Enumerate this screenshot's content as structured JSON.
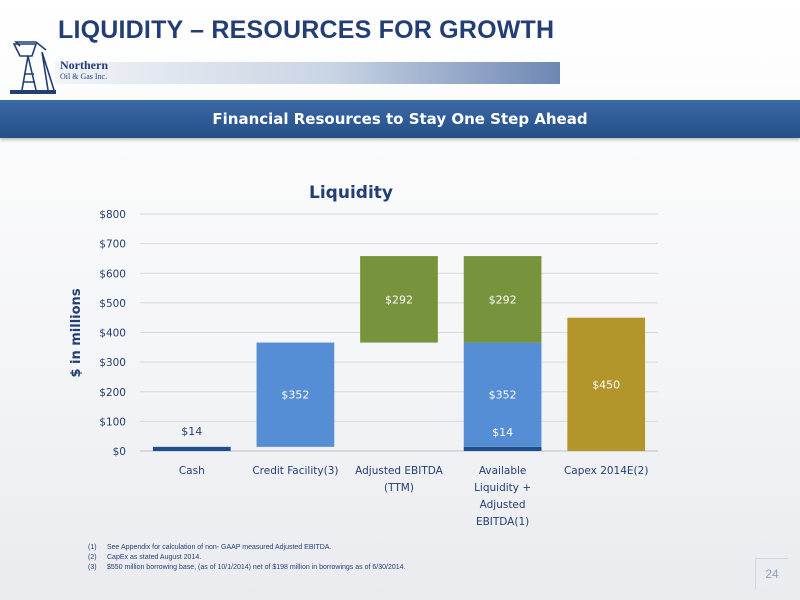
{
  "header": {
    "title": "LIQUIDITY – RESOURCES FOR GROWTH",
    "logo_line1": "Northern",
    "logo_line2": "Oil & Gas Inc."
  },
  "banner": {
    "text": "Financial Resources to Stay One Step Ahead"
  },
  "chart_data": {
    "type": "bar",
    "title": "Liquidity",
    "ylabel": "$ in millions",
    "xlabel": "",
    "ylim": [
      0,
      800
    ],
    "yticks": [
      0,
      100,
      200,
      300,
      400,
      500,
      600,
      700,
      800
    ],
    "ytick_labels": [
      "$0",
      "$100",
      "$200",
      "$300",
      "$400",
      "$500",
      "$600",
      "$700",
      "$800"
    ],
    "grid": true,
    "categories": [
      [
        "Cash"
      ],
      [
        "Credit Facility(3)"
      ],
      [
        "Adjusted EBITDA",
        "(TTM)"
      ],
      [
        "Available",
        "Liquidity +",
        "Adjusted",
        "EBITDA(1)"
      ],
      [
        "Capex 2014E(2)"
      ]
    ],
    "bars": [
      {
        "category": 0,
        "base": 0,
        "value": 14,
        "label": "$14",
        "color": "#1f4e8c",
        "label_position": "above"
      },
      {
        "category": 1,
        "base": 14,
        "value": 352,
        "label": "$352",
        "color": "#558ed5",
        "label_position": "inside"
      },
      {
        "category": 2,
        "base": 366,
        "value": 292,
        "label": "$292",
        "color": "#77933c",
        "label_position": "inside"
      },
      {
        "category": 3,
        "base": 0,
        "value": 14,
        "label": "$14",
        "color": "#1f4e8c",
        "label_position": "inside-above"
      },
      {
        "category": 3,
        "base": 14,
        "value": 352,
        "label": "$352",
        "color": "#558ed5",
        "label_position": "inside"
      },
      {
        "category": 3,
        "base": 366,
        "value": 292,
        "label": "$292",
        "color": "#77933c",
        "label_position": "inside"
      },
      {
        "category": 4,
        "base": 0,
        "value": 450,
        "label": "$450",
        "color": "#b3952c",
        "label_position": "inside"
      }
    ],
    "colors": {
      "cash": "#1f4e8c",
      "credit": "#558ed5",
      "ebitda": "#77933c",
      "capex": "#b3952c",
      "axis_text": "#233e75",
      "grid": "#d9d9d9"
    }
  },
  "footnotes": [
    {
      "num": "(1)",
      "text": "See Appendix for calculation of non- GAAP measured Adjusted EBITDA."
    },
    {
      "num": "(2)",
      "text": "CapEx as stated August  2014."
    },
    {
      "num": "(3)",
      "text": "$550 million borrowing base, (as of 10/1/2014) net of $198 million in borrowings as of 6/30/2014."
    }
  ],
  "page_number": "24"
}
